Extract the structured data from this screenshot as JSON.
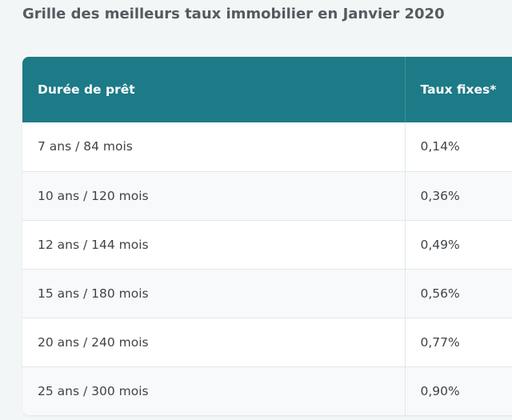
{
  "page": {
    "title": "Grille des meilleurs taux immobilier en Janvier 2020"
  },
  "table": {
    "headers": [
      "Durée de prêt",
      "Taux fixes*"
    ],
    "rows": [
      {
        "duration": "7 ans / 84 mois",
        "rate": "0,14%"
      },
      {
        "duration": "10 ans / 120 mois",
        "rate": "0,36%"
      },
      {
        "duration": "12 ans / 144 mois",
        "rate": "0,49%"
      },
      {
        "duration": "15 ans / 180 mois",
        "rate": "0,56%"
      },
      {
        "duration": "20 ans / 240 mois",
        "rate": "0,77%"
      },
      {
        "duration": "25 ans / 300 mois",
        "rate": "0,90%"
      }
    ]
  },
  "colors": {
    "header_bg": "#1d7a87",
    "page_bg": "#f3f6f7",
    "row_alt_bg": "#f7f9fa"
  }
}
